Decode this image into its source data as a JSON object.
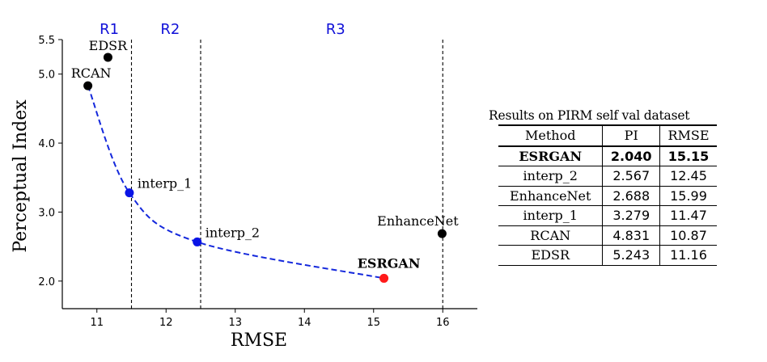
{
  "chart_data": [
    {
      "type": "scatter",
      "xlabel": "RMSE",
      "ylabel": "Perceptual Index",
      "xlim": [
        10.5,
        16.5
      ],
      "ylim": [
        1.6,
        5.5
      ],
      "xticks": [
        11,
        12,
        13,
        14,
        15,
        16
      ],
      "yticks": [
        2.0,
        3.0,
        4.0,
        5.0,
        5.5
      ],
      "ytick_labels": [
        "2.0",
        "3.0",
        "4.0",
        "5.0",
        "5.5"
      ],
      "grid": false,
      "points": [
        {
          "label": "EDSR",
          "x": 11.16,
          "y": 5.243,
          "color": "#000000",
          "bold": false
        },
        {
          "label": "RCAN",
          "x": 10.87,
          "y": 4.831,
          "color": "#000000",
          "bold": false
        },
        {
          "label": "interp_1",
          "x": 11.47,
          "y": 3.279,
          "color": "#0a14e6",
          "bold": false
        },
        {
          "label": "interp_2",
          "x": 12.45,
          "y": 2.567,
          "color": "#0a14e6",
          "bold": false
        },
        {
          "label": "EnhanceNet",
          "x": 15.99,
          "y": 2.688,
          "color": "#000000",
          "bold": false
        },
        {
          "label": "ESRGAN",
          "x": 15.15,
          "y": 2.04,
          "color": "#ff1a1a",
          "bold": true
        }
      ],
      "curve": {
        "style": "dashed",
        "color": "#1428dc",
        "points": [
          [
            10.87,
            4.831
          ],
          [
            11.47,
            3.279
          ],
          [
            12.45,
            2.567
          ],
          [
            15.15,
            2.04
          ]
        ]
      },
      "region_boundaries": [
        11.5,
        12.5,
        16.0
      ],
      "regions": [
        {
          "label": "R1",
          "x": 11.18
        },
        {
          "label": "R2",
          "x": 12.06
        },
        {
          "label": "R3",
          "x": 14.45
        }
      ]
    },
    {
      "type": "table",
      "caption": "Results on PIRM self  val dataset",
      "columns": [
        "Method",
        "PI",
        "RMSE"
      ],
      "rows": [
        {
          "method": "ESRGAN",
          "pi": "2.040",
          "rmse": "15.15",
          "bold": true
        },
        {
          "method": "interp_2",
          "pi": "2.567",
          "rmse": "12.45",
          "bold": false
        },
        {
          "method": "EnhanceNet",
          "pi": "2.688",
          "rmse": "15.99",
          "bold": false
        },
        {
          "method": "interp_1",
          "pi": "3.279",
          "rmse": "11.47",
          "bold": false
        },
        {
          "method": "RCAN",
          "pi": "4.831",
          "rmse": "10.87",
          "bold": false
        },
        {
          "method": "EDSR",
          "pi": "5.243",
          "rmse": "11.16",
          "bold": false
        }
      ]
    }
  ]
}
